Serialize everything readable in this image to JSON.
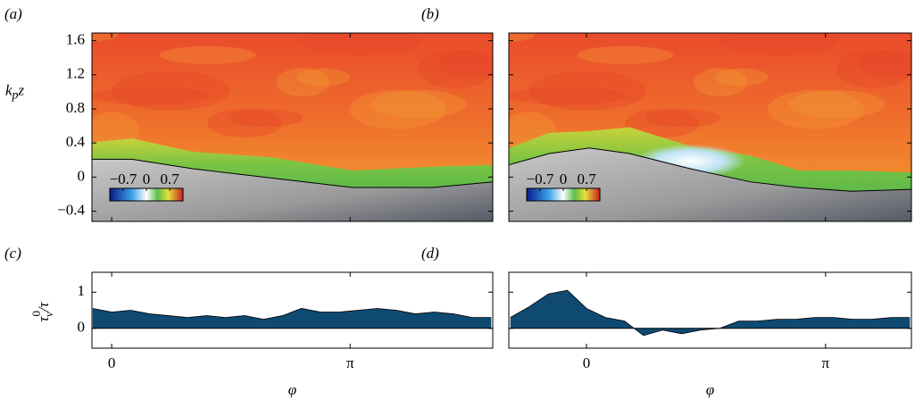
{
  "chart_data": [
    {
      "type": "heatmap",
      "panel_label": "(a)",
      "ylabel": [
        "k",
        "p",
        "z"
      ],
      "xlim": [
        -0.26,
        5.02
      ],
      "xticks": [
        0,
        3.1416
      ],
      "ylim": [
        -0.52,
        1.69
      ],
      "yticks": [
        {
          "value": -0.4,
          "label": "−0.4"
        },
        0,
        0.4,
        0.8,
        1.2,
        1.6
      ],
      "show_ytick_labels": true,
      "clim": [
        -1.1,
        1.1
      ],
      "cticks": [
        {
          "value": -0.7,
          "label": "−0.7"
        },
        0,
        0.7
      ]
    },
    {
      "type": "heatmap",
      "panel_label": "(b)",
      "xlim": [
        -1.02,
        4.27
      ],
      "xticks": [
        0,
        3.1416
      ],
      "ylim": [
        -0.52,
        1.69
      ],
      "yticks": [
        -0.4,
        0,
        0.4,
        0.8,
        1.2,
        1.6
      ],
      "show_ytick_labels": false,
      "clim": [
        -1.1,
        1.1
      ],
      "cticks": [
        {
          "value": -0.7,
          "label": "−0.7"
        },
        0,
        0.7
      ]
    },
    {
      "type": "area",
      "panel_label": "(c)",
      "ylabel": [
        "τ",
        "0",
        "ν",
        "/τ"
      ],
      "xlabel": "φ",
      "color": "#0e4a72",
      "x": [
        -0.25,
        0,
        0.25,
        0.5,
        0.75,
        1.0,
        1.25,
        1.5,
        1.75,
        2.0,
        2.25,
        2.5,
        2.75,
        3.0,
        3.25,
        3.5,
        3.75,
        4.0,
        4.25,
        4.5,
        4.75,
        5.0
      ],
      "values": [
        0.55,
        0.45,
        0.5,
        0.4,
        0.35,
        0.3,
        0.35,
        0.3,
        0.35,
        0.25,
        0.35,
        0.55,
        0.45,
        0.45,
        0.5,
        0.55,
        0.5,
        0.4,
        0.45,
        0.4,
        0.3,
        0.3
      ],
      "xlim": [
        -0.26,
        5.02
      ],
      "xticks": [
        0,
        {
          "value": 3.1416,
          "label": "π"
        }
      ],
      "ylim": [
        -0.55,
        1.55
      ],
      "yticks": [
        0,
        1
      ],
      "show_ytick_labels": true
    },
    {
      "type": "area",
      "panel_label": "(d)",
      "xlabel": "φ",
      "color": "#0e4a72",
      "x": [
        -1.0,
        -0.75,
        -0.5,
        -0.25,
        0,
        0.25,
        0.5,
        0.75,
        1.0,
        1.25,
        1.5,
        1.75,
        2.0,
        2.25,
        2.5,
        2.75,
        3.0,
        3.25,
        3.5,
        3.75,
        4.0,
        4.25
      ],
      "values": [
        0.3,
        0.6,
        0.95,
        1.05,
        0.55,
        0.3,
        0.2,
        -0.2,
        -0.05,
        -0.15,
        -0.05,
        0,
        0.2,
        0.2,
        0.25,
        0.25,
        0.3,
        0.3,
        0.25,
        0.25,
        0.3,
        0.3
      ],
      "xlim": [
        -1.02,
        4.27
      ],
      "xticks": [
        0,
        {
          "value": 3.1416,
          "label": "π"
        }
      ],
      "ylim": [
        -0.55,
        1.55
      ],
      "yticks": [
        0,
        1
      ],
      "show_ytick_labels": false
    }
  ]
}
